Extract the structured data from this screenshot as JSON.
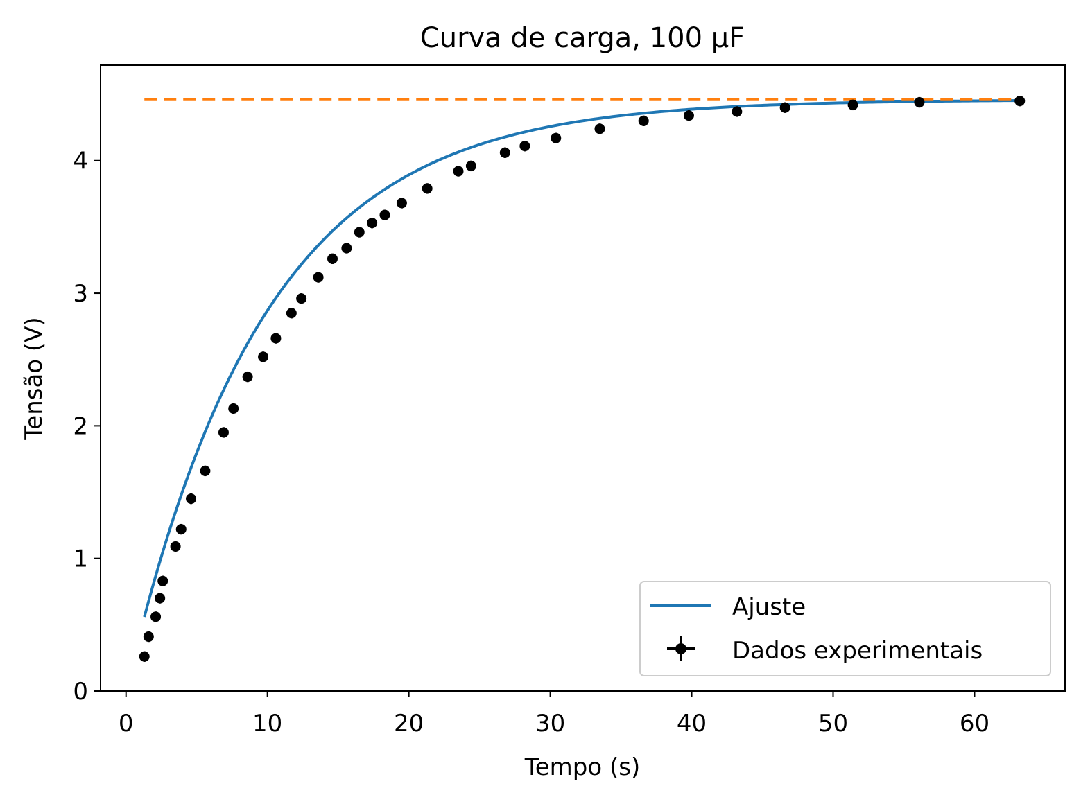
{
  "chart_data": {
    "type": "scatter",
    "title": "Curva de carga, 100 μF",
    "xlabel": "Tempo (s)",
    "ylabel": "Tensão (V)",
    "xlim": [
      -1.8,
      66.4
    ],
    "ylim": [
      0,
      4.72
    ],
    "xticks": [
      0,
      10,
      20,
      30,
      40,
      50,
      60
    ],
    "yticks": [
      0,
      1,
      2,
      3,
      4
    ],
    "grid": false,
    "legend_position": "lower-right",
    "series": [
      {
        "name": "Ajuste",
        "kind": "line",
        "color": "#1f77b4",
        "model": {
          "amplitude": 4.46,
          "tau": 9.7,
          "t_start": 1.3,
          "t_end": 63.3
        }
      },
      {
        "name": "Dados experimentais",
        "kind": "errorbar",
        "color": "#000000",
        "yerr": 0.04,
        "x": [
          1.3,
          1.6,
          2.1,
          2.4,
          2.6,
          3.5,
          3.9,
          4.6,
          5.6,
          6.9,
          7.6,
          8.6,
          9.7,
          10.6,
          11.7,
          12.4,
          13.6,
          14.6,
          15.6,
          16.5,
          17.4,
          18.3,
          19.5,
          21.3,
          23.5,
          24.4,
          26.8,
          28.2,
          30.4,
          33.5,
          36.6,
          39.8,
          43.2,
          46.6,
          51.4,
          56.1,
          63.2
        ],
        "y": [
          0.26,
          0.41,
          0.56,
          0.7,
          0.83,
          1.09,
          1.22,
          1.45,
          1.66,
          1.95,
          2.13,
          2.37,
          2.52,
          2.66,
          2.85,
          2.96,
          3.12,
          3.26,
          3.34,
          3.46,
          3.53,
          3.59,
          3.68,
          3.79,
          3.92,
          3.96,
          4.06,
          4.11,
          4.17,
          4.24,
          4.3,
          4.34,
          4.37,
          4.4,
          4.42,
          4.44,
          4.45
        ]
      },
      {
        "name": "",
        "kind": "dashed-line",
        "color": "#ff7f0e",
        "x": [
          1.3,
          63.3
        ],
        "y": [
          4.46,
          4.46
        ]
      }
    ]
  }
}
